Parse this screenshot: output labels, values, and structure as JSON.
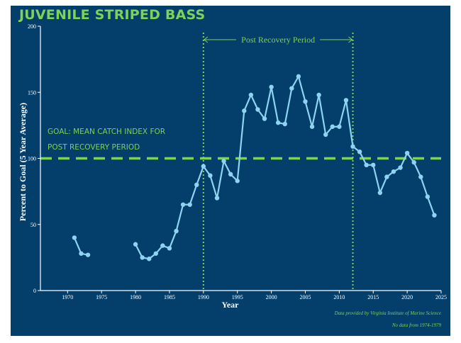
{
  "chart_data": {
    "type": "line",
    "title": "JUVENILE STRIPED BASS",
    "xlabel": "Year",
    "ylabel": "Percent to Goal (5 Year Average)",
    "xlim": [
      1966,
      2025
    ],
    "ylim": [
      0,
      200
    ],
    "x_ticks": [
      1970,
      1975,
      1980,
      1985,
      1990,
      1995,
      2000,
      2005,
      2010,
      2015,
      2020,
      2025
    ],
    "y_ticks": [
      0,
      50,
      100,
      150,
      200
    ],
    "series": [
      {
        "name": "Percent to Goal",
        "color": "#8fd3f2",
        "segments": [
          {
            "x": [
              1971,
              1972,
              1973
            ],
            "y": [
              40,
              28,
              27
            ]
          },
          {
            "x": [
              1980,
              1981,
              1982,
              1983,
              1984,
              1985,
              1986,
              1987,
              1988,
              1989,
              1990,
              1991,
              1992,
              1993,
              1994,
              1995,
              1996,
              1997,
              1998,
              1999,
              2000,
              2001,
              2002,
              2003,
              2004,
              2005,
              2006,
              2007,
              2008,
              2009,
              2010,
              2011,
              2012,
              2013,
              2014,
              2015,
              2016,
              2017,
              2018,
              2019,
              2020,
              2021,
              2022,
              2023,
              2024
            ],
            "y": [
              35,
              25,
              24,
              28,
              34,
              32,
              45,
              65,
              65,
              80,
              94,
              87,
              70,
              98,
              88,
              83,
              136,
              148,
              137,
              130,
              154,
              127,
              126,
              153,
              162,
              143,
              124,
              148,
              118,
              124,
              124,
              144,
              109,
              105,
              95,
              95,
              74,
              86,
              90,
              93,
              104,
              97,
              86,
              71,
              57
            ]
          }
        ]
      }
    ],
    "goal_line": {
      "y": 100,
      "label_line1": "GOAL: MEAN CATCH INDEX FOR",
      "label_line2": "POST RECOVERY PERIOD",
      "color": "#7bd357"
    },
    "period": {
      "start": 1990,
      "end": 2012,
      "label": "Post Recovery Period",
      "color": "#7bd357"
    },
    "credit_line1": "Data provided by Virginia Institute of Marine Science",
    "credit_line2": "No data from 1974-1979"
  }
}
